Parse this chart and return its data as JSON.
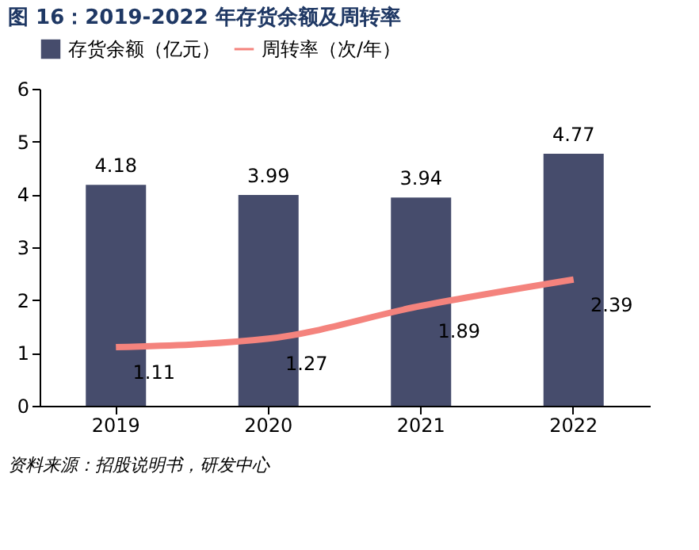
{
  "chart_data": {
    "type": "bar",
    "title": "图 16：2019-2022 年存货余额及周转率",
    "categories": [
      "2019",
      "2020",
      "2021",
      "2022"
    ],
    "series": [
      {
        "name": "存货余额（亿元）",
        "color": "#464c6c",
        "values": [
          4.18,
          3.99,
          3.94,
          4.77
        ]
      },
      {
        "name": "周转率（次/年）",
        "type": "line",
        "color": "#f4837d",
        "values": [
          1.11,
          1.27,
          1.89,
          2.39
        ]
      }
    ],
    "ylim": [
      0,
      6
    ],
    "yticks": [
      0,
      1,
      2,
      3,
      4,
      5,
      6
    ],
    "grid": false,
    "legend": "top",
    "data_labels": true,
    "annotations": [
      "资料来源：招股说明书，研发中心"
    ]
  }
}
